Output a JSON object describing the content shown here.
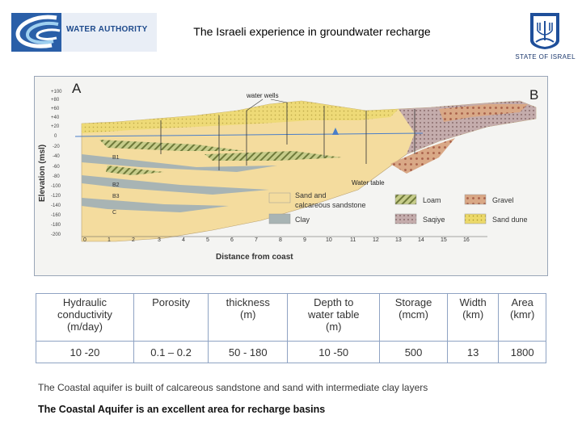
{
  "header": {
    "logo_text": "WATER AUTHORITY",
    "title": "The Israeli experience in groundwater recharge",
    "state": "STATE OF ISRAEL"
  },
  "figure": {
    "label_a": "A",
    "label_b": "B",
    "water_wells": "water wells",
    "water_table": "Water table",
    "yaxis_label": "Elevation (msl)",
    "xaxis_label": "Distance from coast",
    "y_ticks": [
      "+100",
      "+80",
      "+60",
      "+40",
      "+20",
      "0",
      "-20",
      "-40",
      "-60",
      "-80",
      "-100",
      "-120",
      "-140",
      "-160",
      "-180",
      "-200"
    ],
    "x_ticks": [
      "0",
      "1",
      "2",
      "3",
      "4",
      "5",
      "6",
      "7",
      "8",
      "9",
      "10",
      "11",
      "12",
      "13",
      "14",
      "15",
      "16"
    ],
    "aquifer_labels": [
      "B1",
      "B2",
      "B3",
      "C"
    ],
    "legend": [
      {
        "label": "Sand and calcareous sandstone",
        "color": "#f4dc9e"
      },
      {
        "label": "Clay",
        "color": "#a8b4b4"
      },
      {
        "label": "Loam",
        "color": "#b9c07a"
      },
      {
        "label": "Saqiye",
        "color": "#b59a9a"
      },
      {
        "label": "Gravel",
        "color": "#d6a07e"
      },
      {
        "label": "Sand dune",
        "color": "#e6d36a"
      }
    ],
    "legend_sand_1": "Sand and",
    "legend_sand_2": "calcareous sandstone"
  },
  "table": {
    "headers": [
      [
        "Hydraulic",
        "conductivity",
        "(m/day)"
      ],
      [
        "Porosity"
      ],
      [
        "thickness",
        "(m)"
      ],
      [
        "Depth to",
        "water table",
        "(m)"
      ],
      [
        "Storage",
        "(mcm)"
      ],
      [
        "Width",
        "(km)"
      ],
      [
        "Area",
        "(kmr)"
      ]
    ],
    "values": [
      "10 -20",
      "0.1 – 0.2",
      "50 - 180",
      "10 -50",
      "500",
      "13",
      "1800"
    ]
  },
  "notes": {
    "line1": "The Coastal aquifer is built of calcareous sandstone and sand with intermediate clay layers",
    "line2": "The Coastal Aquifer is an excellent area for recharge basins"
  }
}
